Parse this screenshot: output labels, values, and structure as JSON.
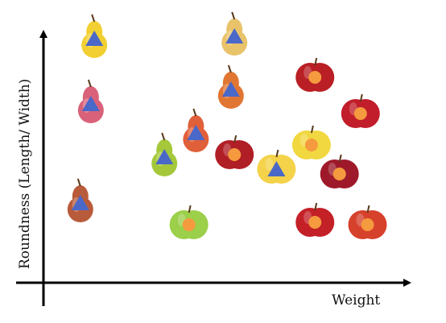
{
  "chart_data": {
    "type": "scatter",
    "title": "",
    "xlabel": "Weight",
    "ylabel": "Roundness (Length/ Width)",
    "xlim": [
      0,
      100
    ],
    "ylim": [
      0,
      100
    ],
    "grid": false,
    "marker_colors": {
      "pear": "#4a68c8",
      "apple": "#f59a3e"
    },
    "series": [
      {
        "marker": "triangle",
        "points": [
          {
            "fruit": "pear",
            "x": 12,
            "y": 94,
            "skin": "#f2cf32"
          },
          {
            "fruit": "pear",
            "x": 11,
            "y": 67,
            "skin": "#d9627a"
          },
          {
            "fruit": "pear",
            "x": 8,
            "y": 26,
            "skin": "#b85b3b"
          },
          {
            "fruit": "pear",
            "x": 32,
            "y": 45,
            "skin": "#a4c83a"
          },
          {
            "fruit": "pear",
            "x": 41,
            "y": 55,
            "skin": "#e0603a"
          },
          {
            "fruit": "pear",
            "x": 52,
            "y": 95,
            "skin": "#e8c36a"
          },
          {
            "fruit": "pear",
            "x": 51,
            "y": 73,
            "skin": "#e17633"
          },
          {
            "fruit": "apple",
            "x": 64,
            "y": 40,
            "skin": "#f4d24a"
          }
        ]
      },
      {
        "marker": "circle",
        "points": [
          {
            "fruit": "apple",
            "x": 75,
            "y": 78,
            "skin": "#b91f24"
          },
          {
            "fruit": "apple",
            "x": 88,
            "y": 63,
            "skin": "#c21d2a"
          },
          {
            "fruit": "apple",
            "x": 52,
            "y": 46,
            "skin": "#b01e26"
          },
          {
            "fruit": "apple",
            "x": 74,
            "y": 50,
            "skin": "#f1d840"
          },
          {
            "fruit": "apple",
            "x": 82,
            "y": 38,
            "skin": "#9e1a2a"
          },
          {
            "fruit": "apple",
            "x": 75,
            "y": 18,
            "skin": "#c42027"
          },
          {
            "fruit": "apple",
            "x": 90,
            "y": 17,
            "skin": "#d6412c"
          },
          {
            "fruit": "apple",
            "x": 39,
            "y": 17,
            "skin": "#9ccf4a"
          }
        ]
      }
    ]
  }
}
